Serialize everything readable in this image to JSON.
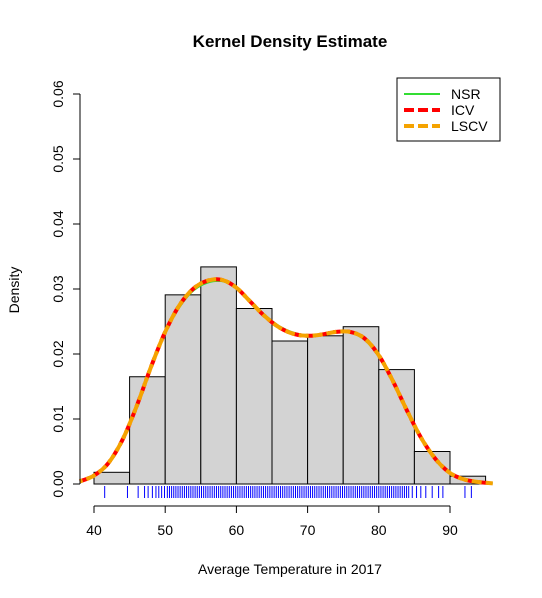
{
  "chart_data": {
    "type": "histogram",
    "title": "Kernel Density Estimate",
    "xlabel": "Average Temperature in 2017",
    "ylabel": "Density",
    "xlim": [
      37,
      97
    ],
    "ylim": [
      0,
      0.06
    ],
    "x_ticks": [
      40,
      50,
      60,
      70,
      80,
      90
    ],
    "y_ticks": [
      0.0,
      0.01,
      0.02,
      0.03,
      0.04,
      0.05,
      0.06
    ],
    "y_tick_labels": [
      "0.00",
      "0.01",
      "0.02",
      "0.03",
      "0.04",
      "0.05",
      "0.06"
    ],
    "bin_edges": [
      40,
      45,
      50,
      55,
      60,
      65,
      70,
      75,
      80,
      85,
      90,
      95
    ],
    "densities": [
      0.0018,
      0.0165,
      0.0291,
      0.0334,
      0.027,
      0.022,
      0.0228,
      0.0242,
      0.0176,
      0.005,
      0.0012
    ],
    "series": [
      {
        "name": "NSR",
        "color": "#33dd33",
        "line_style": "solid",
        "x": [
          38,
          40,
          42,
          44,
          46,
          48,
          50,
          52,
          54,
          56,
          58,
          60,
          62,
          64,
          66,
          68,
          70,
          72,
          74,
          76,
          78,
          80,
          82,
          84,
          86,
          88,
          90,
          92,
          94,
          96
        ],
        "y": [
          0.0004,
          0.0012,
          0.003,
          0.0066,
          0.0118,
          0.0178,
          0.0232,
          0.0272,
          0.0298,
          0.031,
          0.0312,
          0.0302,
          0.0282,
          0.026,
          0.0243,
          0.0233,
          0.0229,
          0.0231,
          0.0234,
          0.0233,
          0.0222,
          0.0196,
          0.0156,
          0.011,
          0.0068,
          0.0036,
          0.0016,
          0.0007,
          0.0003,
          0.0001
        ]
      },
      {
        "name": "ICV",
        "color": "#ff0000",
        "line_style": "dashed",
        "x": [
          38,
          40,
          42,
          44,
          46,
          48,
          50,
          52,
          54,
          56,
          58,
          60,
          62,
          64,
          66,
          68,
          70,
          72,
          74,
          76,
          78,
          80,
          82,
          84,
          86,
          88,
          90,
          92,
          94,
          96
        ],
        "y": [
          0.0004,
          0.0013,
          0.0032,
          0.0068,
          0.012,
          0.018,
          0.0234,
          0.0275,
          0.0301,
          0.0313,
          0.0314,
          0.0302,
          0.028,
          0.0258,
          0.0241,
          0.0231,
          0.0228,
          0.023,
          0.0234,
          0.0234,
          0.0224,
          0.0198,
          0.0158,
          0.0112,
          0.007,
          0.0038,
          0.0017,
          0.0007,
          0.0003,
          0.0001
        ]
      },
      {
        "name": "LSCV",
        "color": "#f5a300",
        "line_style": "dashed",
        "x": [
          38,
          40,
          42,
          44,
          46,
          48,
          50,
          52,
          54,
          56,
          58,
          60,
          62,
          64,
          66,
          68,
          70,
          72,
          74,
          76,
          78,
          80,
          82,
          84,
          86,
          88,
          90,
          92,
          94,
          96
        ],
        "y": [
          0.0004,
          0.0013,
          0.0032,
          0.0068,
          0.012,
          0.018,
          0.0234,
          0.0275,
          0.0301,
          0.0313,
          0.0314,
          0.0302,
          0.028,
          0.0258,
          0.0241,
          0.0231,
          0.0228,
          0.023,
          0.0234,
          0.0234,
          0.0224,
          0.0198,
          0.0158,
          0.0112,
          0.007,
          0.0038,
          0.0017,
          0.0007,
          0.0003,
          0.0001
        ]
      }
    ],
    "rug_color": "#0000ff",
    "rug": [
      41.5,
      44.7,
      46.2,
      47.1,
      47.6,
      48.2,
      48.7,
      49.1,
      49.5,
      49.9,
      50.3,
      50.6,
      50.9,
      51.2,
      51.5,
      51.8,
      52.1,
      52.4,
      52.7,
      53.0,
      53.3,
      53.6,
      53.9,
      54.2,
      54.5,
      54.8,
      55.1,
      55.4,
      55.7,
      56.0,
      56.3,
      56.6,
      56.9,
      57.2,
      57.5,
      57.8,
      58.1,
      58.4,
      58.7,
      59.0,
      59.3,
      59.6,
      59.9,
      60.2,
      60.5,
      60.8,
      61.1,
      61.4,
      61.7,
      62.0,
      62.3,
      62.6,
      62.9,
      63.2,
      63.5,
      63.8,
      64.1,
      64.4,
      64.7,
      65.0,
      65.3,
      65.6,
      65.9,
      66.2,
      66.5,
      66.8,
      67.1,
      67.4,
      67.7,
      68.0,
      68.3,
      68.6,
      68.9,
      69.2,
      69.5,
      69.8,
      70.1,
      70.4,
      70.7,
      71.0,
      71.3,
      71.6,
      71.9,
      72.2,
      72.5,
      72.8,
      73.1,
      73.4,
      73.7,
      74.0,
      74.3,
      74.6,
      74.9,
      75.2,
      75.5,
      75.8,
      76.1,
      76.4,
      76.7,
      77.0,
      77.3,
      77.6,
      77.9,
      78.2,
      78.5,
      78.8,
      79.1,
      79.4,
      79.7,
      80.0,
      80.3,
      80.6,
      80.9,
      81.2,
      81.5,
      81.8,
      82.1,
      82.4,
      82.7,
      83.0,
      83.3,
      83.6,
      83.9,
      84.2,
      84.7,
      85.3,
      85.9,
      86.6,
      87.5,
      88.4,
      89.0,
      92.1,
      93.0
    ],
    "legend_position": "top-right"
  }
}
